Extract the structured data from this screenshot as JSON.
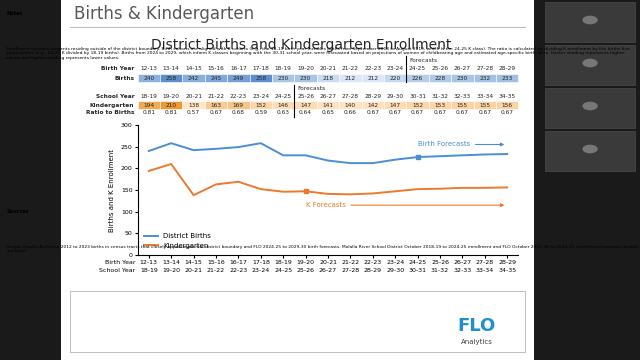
{
  "header": {
    "title": "Births & Kindergarten",
    "subtitle": "District Births and Kindergarten Enrollment"
  },
  "table": {
    "row_labels": {
      "birth_year": "Birth Year",
      "births": "Births",
      "school_year": "School Year",
      "kindergarten": "Kindergarten",
      "ratio": "Ratio to Births"
    },
    "ratio_to_births": [
      0.81,
      0.81,
      0.57,
      0.67,
      0.68,
      0.59,
      0.63,
      0.64,
      0.65,
      0.66,
      0.67,
      0.67,
      0.67,
      0.67,
      0.67,
      0.67,
      0.67
    ],
    "forecast_text": "Forecasts"
  },
  "chart_data": {
    "type": "line",
    "categories": [
      "12-13",
      "13-14",
      "14-15",
      "15-16",
      "16-17",
      "17-18",
      "18-19",
      "19-20",
      "20-21",
      "21-22",
      "22-23",
      "23-24",
      "24-25",
      "25-26",
      "26-27",
      "27-28",
      "28-29"
    ],
    "secondary_categories": [
      "18-19",
      "19-20",
      "20-21",
      "21-22",
      "22-23",
      "23-24",
      "24-25",
      "25-26",
      "26-27",
      "27-28",
      "28-29",
      "29-30",
      "30-31",
      "31-32",
      "32-33",
      "33-34",
      "34-35"
    ],
    "category_titles": [
      "Birth Year",
      "School Year"
    ],
    "y_label": "Births and K Enrollment",
    "ylim": [
      0,
      300
    ],
    "yticks": [
      0,
      50,
      100,
      150,
      200,
      250,
      300
    ],
    "grid": false,
    "legend": "lower left",
    "series": [
      {
        "name": "District Births",
        "color": "#4a8fd4",
        "marker": "square",
        "values": [
          240,
          258,
          242,
          245,
          249,
          258,
          230,
          230,
          218,
          212,
          212,
          220,
          226,
          228,
          230,
          232,
          233
        ],
        "forecast_start": {
          "row": "Birth Year",
          "value": "24-25"
        },
        "forecast_label": "Birth Forecasts"
      },
      {
        "name": "Kindergarten",
        "color": "#ec7a2c",
        "marker": "square",
        "values": [
          194,
          210,
          138,
          163,
          169,
          152,
          146,
          147,
          141,
          140,
          142,
          147,
          152,
          153,
          155,
          155,
          156
        ],
        "forecast_start": {
          "row": "School Year",
          "value": "25-26"
        },
        "forecast_label": "K Forecasts"
      }
    ]
  },
  "notes": {
    "title": "Notes",
    "text": "Enrollment includes students residing outside of the district boundary. Birth cohorts are aligned with K cohorts (e.g., the 18-19 birth year includes births from September 2018 to August 2019, which is the 24-25 K class). The ratio is calculated by dividing K enrollment by the births five years earlier (e.g., 24-25 K divided by 18-19 births). Births from 2024 to 2029, which inform K classes beginning with the 30-31 school year, were forecasted based on projections of women of childbearing age and estimated age-specific birth rates. Darker shading represents higher values and lighter shading represents lower values."
  },
  "sources": {
    "title": "Sources",
    "text": "Oregon Health Authority 2012 to 2023 births in census tracts that closely approximate the district boundary and FLO 2024-25 to 2029-30 birth forecasts. Molalla River School District October 2018-19 to 2024-25 enrollment and FLO October 2025-26 to 2034-35 enrollment forecasts (middle scenario)."
  },
  "logo": [
    "FLO",
    "Analytics"
  ]
}
